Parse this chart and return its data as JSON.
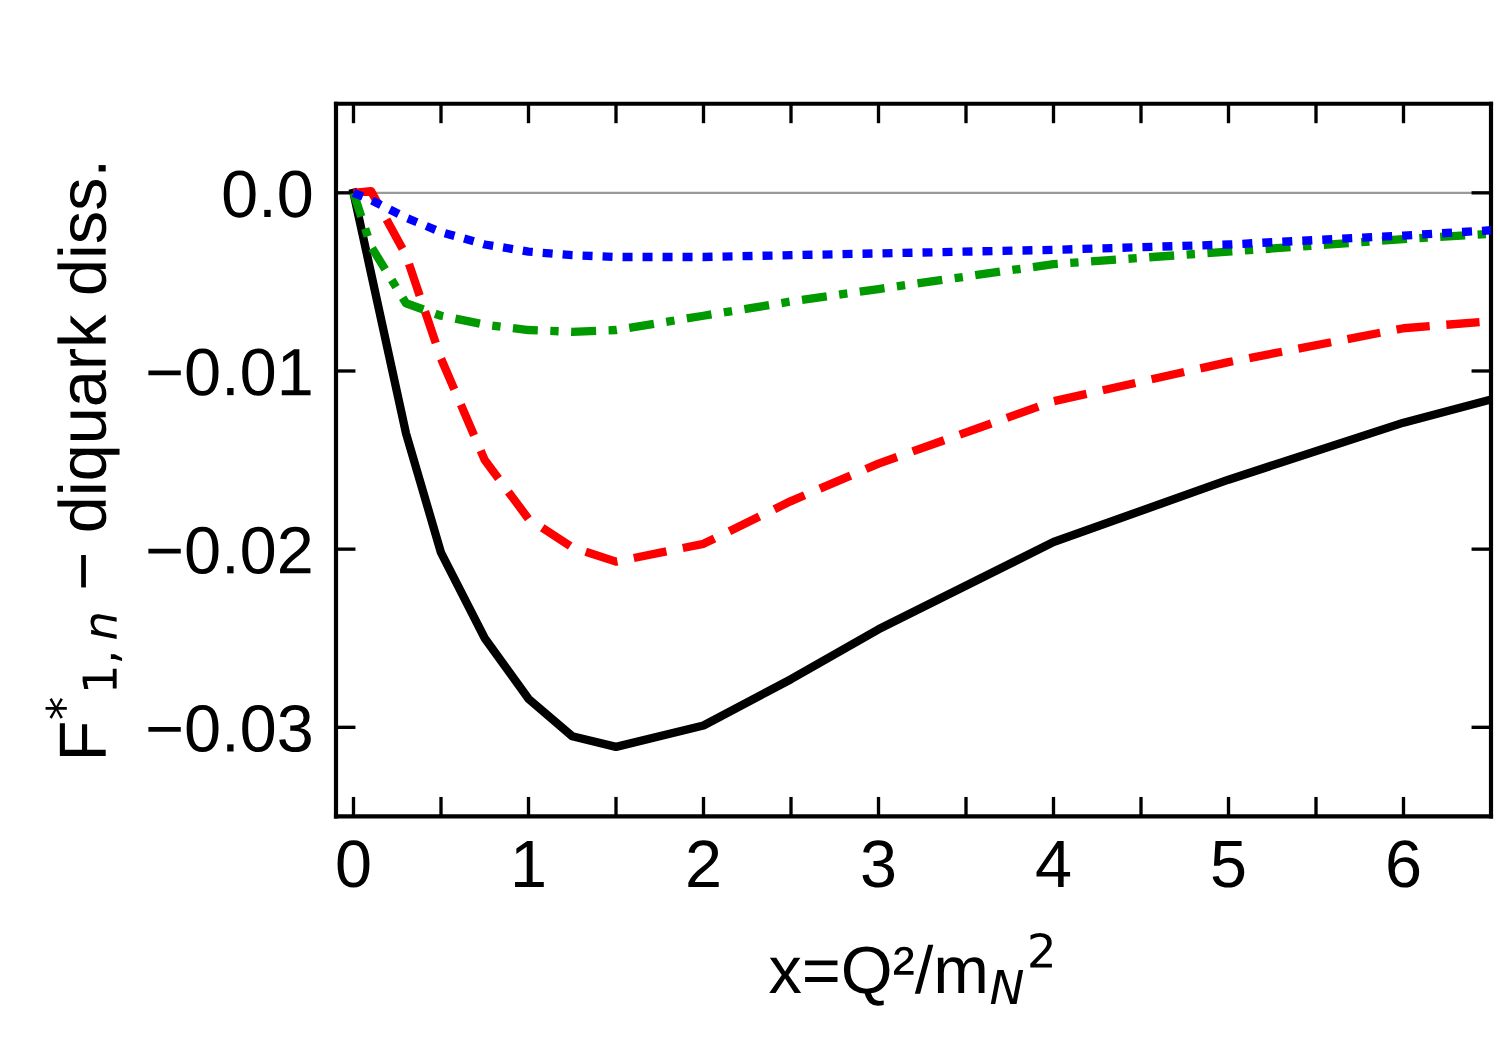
{
  "chart_data": {
    "type": "line",
    "xlabel": "x=Q²/m$_{N}$$^{2}$",
    "ylabel": "F$^{*}$$_{1,n}$ − diquark diss.",
    "xlim": [
      -0.1,
      6.5
    ],
    "ylim": [
      -0.035,
      0.005
    ],
    "xticks": [
      0,
      {
        "value": 0.5,
        "label": null
      },
      1,
      {
        "value": 1.5,
        "label": null
      },
      2,
      {
        "value": 2.5,
        "label": null
      },
      3,
      {
        "value": 3.5,
        "label": null
      },
      4,
      {
        "value": 4.5,
        "label": null
      },
      5,
      {
        "value": 5.5,
        "label": null
      },
      6
    ],
    "yticks": [
      {
        "value": -0.03,
        "label": "−0.03"
      },
      {
        "value": -0.02,
        "label": "−0.02"
      },
      {
        "value": -0.01,
        "label": "−0.01"
      },
      {
        "value": 0,
        "label": "0.0"
      }
    ],
    "grid": false,
    "legend": false,
    "marker": "none",
    "ref_lines": [
      {
        "axis": "y",
        "value": 0,
        "color": "#999999"
      }
    ],
    "x": [
      0,
      0.1,
      0.3,
      0.5,
      0.75,
      1.0,
      1.25,
      1.5,
      2.0,
      2.5,
      3,
      4,
      5,
      6,
      6.5
    ],
    "series": [
      {
        "color": "#000000",
        "line_style": "solid",
        "values": [
          0,
          -0.0045,
          -0.0135,
          -0.0202,
          -0.025,
          -0.0284,
          -0.0305,
          -0.0311,
          -0.0299,
          -0.0273,
          -0.0245,
          -0.0196,
          -0.0161,
          -0.0129,
          -0.0116
        ]
      },
      {
        "color": "#ff0000",
        "line_style": "dashed",
        "values": [
          0,
          0.0001,
          -0.0035,
          -0.0093,
          -0.015,
          -0.0183,
          -0.0199,
          -0.0207,
          -0.0197,
          -0.0173,
          -0.0152,
          -0.0117,
          -0.0095,
          -0.0076,
          -0.0072
        ]
      },
      {
        "color": "#009900",
        "line_style": "dashdot",
        "values": [
          0,
          -0.003,
          -0.0062,
          -0.0069,
          -0.0074,
          -0.0077,
          -0.0078,
          -0.0077,
          -0.0069,
          -0.0061,
          -0.0054,
          -0.004,
          -0.0033,
          -0.0026,
          -0.0023
        ]
      },
      {
        "color": "#0000ff",
        "line_style": "dotted",
        "values": [
          0,
          -0.0004,
          -0.0014,
          -0.0022,
          -0.0029,
          -0.0033,
          -0.0035,
          -0.0036,
          -0.0036,
          -0.0035,
          -0.0034,
          -0.0032,
          -0.0029,
          -0.0024,
          -0.0021
        ]
      }
    ]
  }
}
